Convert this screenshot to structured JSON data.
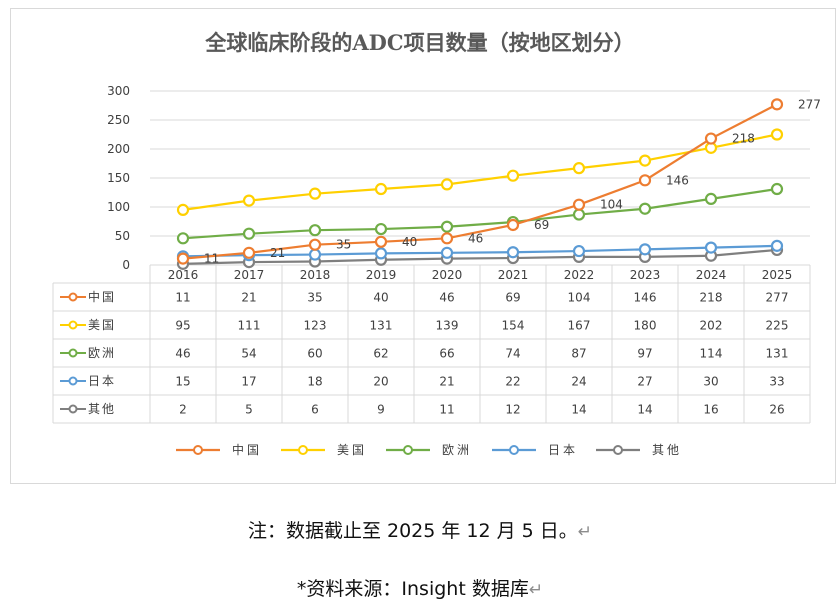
{
  "chart_data": {
    "type": "line",
    "title": "全球临床阶段的ADC项目数量（按地区划分）",
    "categories": [
      "2016",
      "2017",
      "2018",
      "2019",
      "2020",
      "2021",
      "2022",
      "2023",
      "2024",
      "2025"
    ],
    "ylim": [
      0,
      300
    ],
    "yticks": [
      0,
      50,
      100,
      150,
      200,
      250,
      300
    ],
    "grid": true,
    "legend_position": "bottom",
    "data_labels_series": "中国",
    "series": [
      {
        "name": "中国",
        "color": "#ED7D31",
        "values": [
          11,
          21,
          35,
          40,
          46,
          69,
          104,
          146,
          218,
          277
        ]
      },
      {
        "name": "美国",
        "color": "#FFD000",
        "values": [
          95,
          111,
          123,
          131,
          139,
          154,
          167,
          180,
          202,
          225
        ]
      },
      {
        "name": "欧洲",
        "color": "#70AD47",
        "values": [
          46,
          54,
          60,
          62,
          66,
          74,
          87,
          97,
          114,
          131
        ]
      },
      {
        "name": "日本",
        "color": "#5B9BD5",
        "values": [
          15,
          17,
          18,
          20,
          21,
          22,
          24,
          27,
          30,
          33
        ]
      },
      {
        "name": "其他",
        "color": "#7F7F7F",
        "values": [
          2,
          5,
          6,
          9,
          11,
          12,
          14,
          14,
          16,
          26
        ]
      }
    ]
  },
  "notes": {
    "note1": "注：数据截止至 2025 年 12 月 5 日。",
    "note2": "*资料来源：Insight  数据库",
    "return_mark": "↵"
  }
}
